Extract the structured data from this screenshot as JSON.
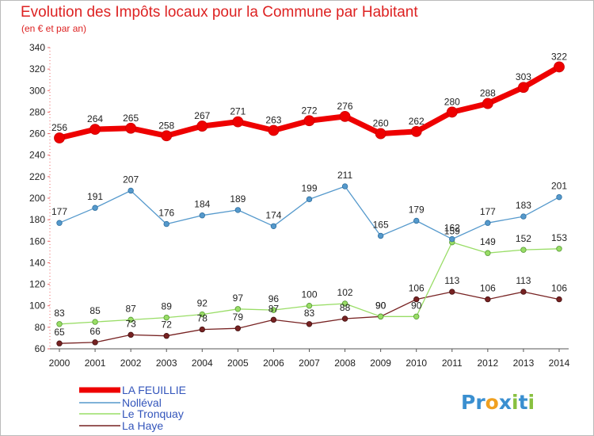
{
  "chart_data": {
    "type": "line",
    "title": "Evolution des Impôts locaux pour la Commune par Habitant",
    "subtitle": "(en € et par an)",
    "x": [
      "2000",
      "2001",
      "2002",
      "2003",
      "2004",
      "2005",
      "2006",
      "2007",
      "2008",
      "2009",
      "2010",
      "2011",
      "2012",
      "2013",
      "2014"
    ],
    "ylim": [
      60,
      340
    ],
    "yticks": [
      60,
      80,
      100,
      120,
      140,
      160,
      180,
      200,
      220,
      240,
      260,
      280,
      300,
      320,
      340
    ],
    "grid": false,
    "legend_position": "bottom-left",
    "series": [
      {
        "name": "LA FEUILLIE",
        "color": "#ee0000",
        "values": [
          256,
          264,
          265,
          258,
          267,
          271,
          263,
          272,
          276,
          260,
          262,
          280,
          288,
          303,
          322
        ]
      },
      {
        "name": "Nolléval",
        "color": "#5599cc",
        "values": [
          177,
          191,
          207,
          176,
          184,
          189,
          174,
          199,
          211,
          165,
          179,
          162,
          177,
          183,
          201
        ]
      },
      {
        "name": "Le Tronquay",
        "color": "#99dd66",
        "values": [
          83,
          85,
          87,
          89,
          92,
          97,
          96,
          100,
          102,
          90,
          90,
          159,
          149,
          152,
          153
        ]
      },
      {
        "name": "La Haye",
        "color": "#772222",
        "values": [
          65,
          66,
          73,
          72,
          78,
          79,
          87,
          83,
          88,
          90,
          106,
          113,
          106,
          113,
          106
        ]
      }
    ]
  },
  "brand": {
    "letters": [
      "P",
      "r",
      "o",
      "x",
      "i",
      "t",
      "i"
    ],
    "colors": [
      "#3a8fd0",
      "#3a8fd0",
      "#f0a020",
      "#3a8fd0",
      "#88c040",
      "#3a8fd0",
      "#88c040"
    ]
  }
}
